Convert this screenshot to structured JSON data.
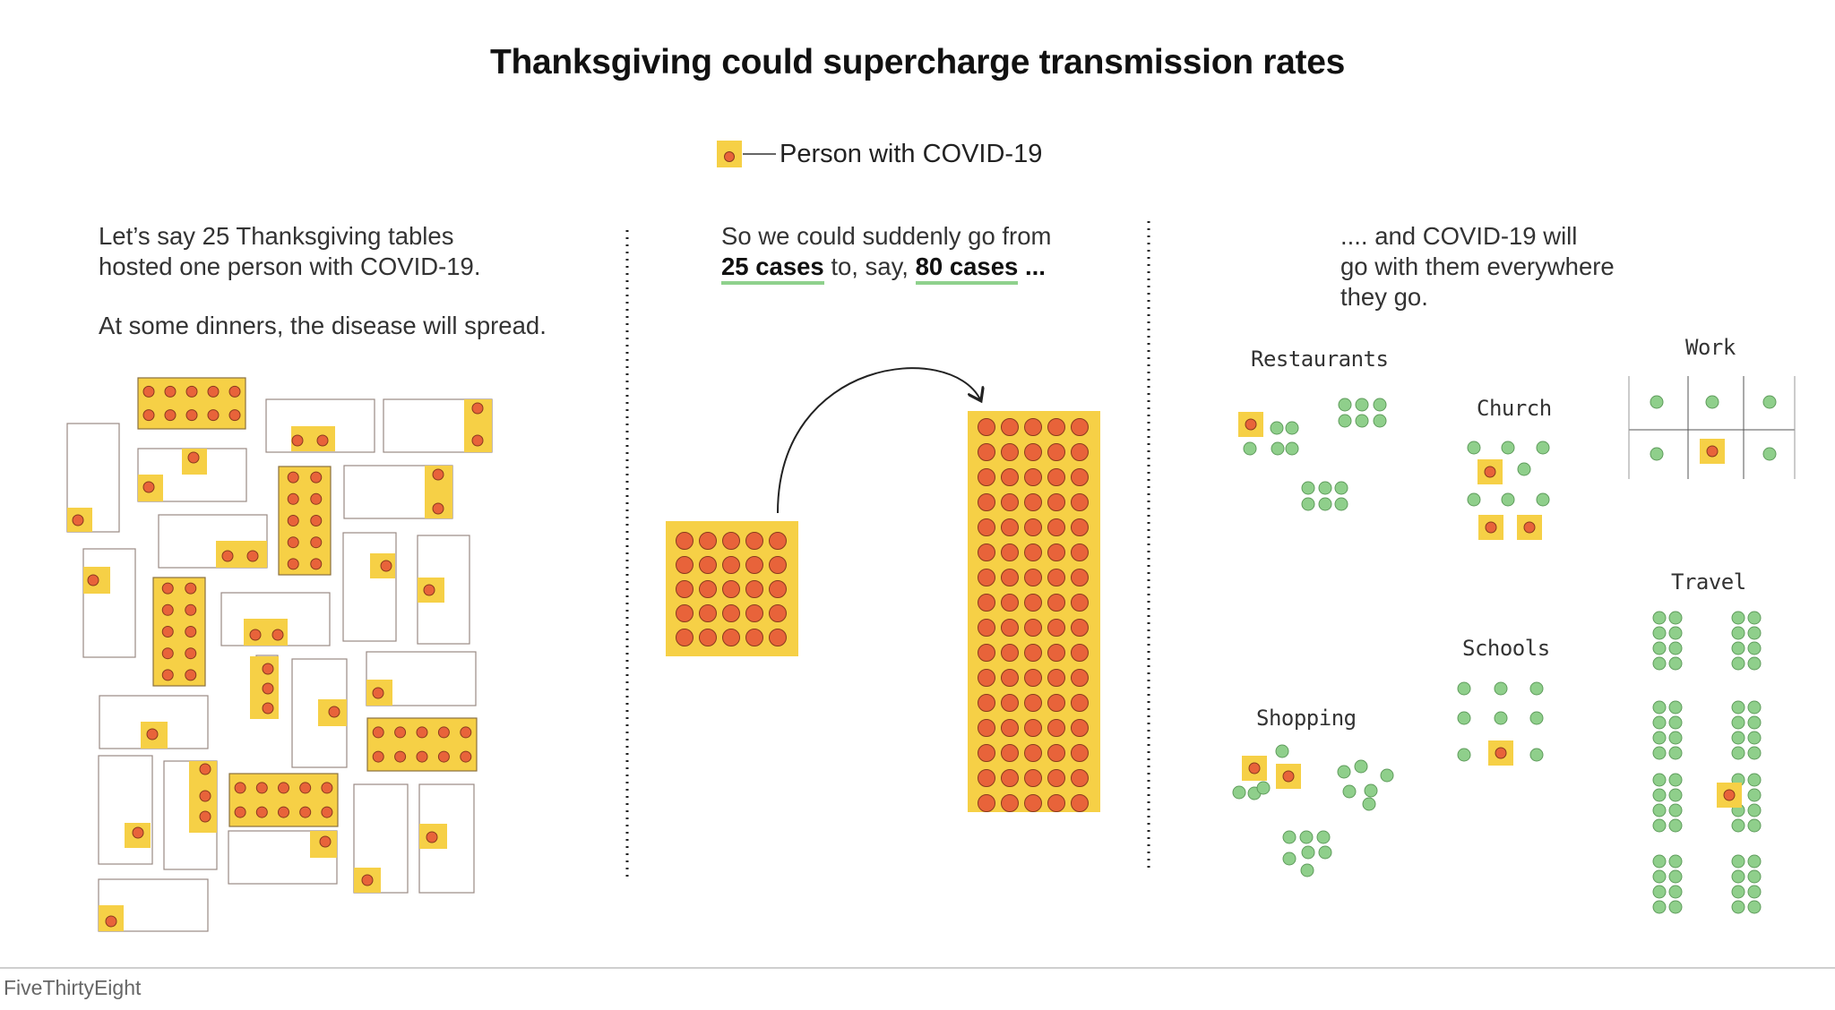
{
  "title": "Thanksgiving could supercharge transmission rates",
  "legend": {
    "label": "Person with COVID-19"
  },
  "colors": {
    "infected_fill": "#f6d046",
    "infected_dot": "#e8633a",
    "healthy_dot": "#8fcf8b",
    "underline": "#8fd18d",
    "table_border": "#9a8a84"
  },
  "panels": {
    "left": {
      "line1": "Let’s say 25 Thanksgiving tables",
      "line2": "hosted one person with COVID-19.",
      "line3": "At some dinners, the disease will spread.",
      "table_count": 25
    },
    "middle": {
      "line1": "So we could suddenly go from",
      "cases_before": "25 cases",
      "connector": "to, say,",
      "cases_after": "80 cases",
      "ellipsis": "...",
      "before_count": 25,
      "after_count": 80
    },
    "right": {
      "line1": ".... and COVID-19 will",
      "line2": "go with them everywhere",
      "line3": "they go.",
      "places": {
        "restaurants": "Restaurants",
        "church": "Church",
        "work": "Work",
        "shopping": "Shopping",
        "schools": "Schools",
        "travel": "Travel"
      }
    }
  },
  "footer": "FiveThirtyEight"
}
